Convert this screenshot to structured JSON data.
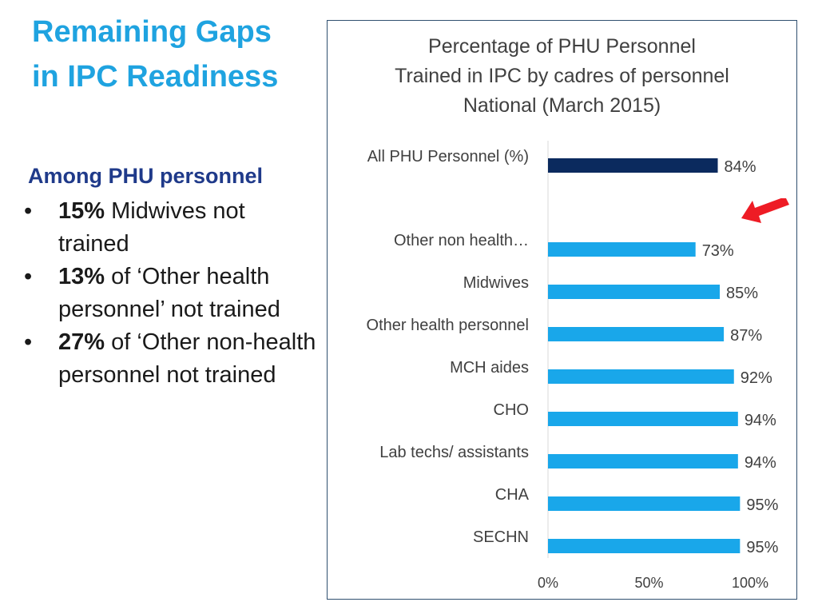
{
  "slide": {
    "title_line1": "Remaining Gaps",
    "title_line2": "in IPC Readiness",
    "bullets_heading": "Among PHU personnel",
    "bullets": [
      {
        "bold": "15%",
        "text": " Midwives not trained"
      },
      {
        "bold": "13%",
        "text": " of ‘Other health personnel’ not trained"
      },
      {
        "bold": "27%",
        "text": " of ‘Other non-health personnel not trained"
      }
    ],
    "bullet_glyph": "•"
  },
  "colors": {
    "title": "#1fa3e0",
    "heading": "#1f3a8a",
    "bar_total": "#0b2a5e",
    "bar": "#19a7ea",
    "arrow": "#ee1c25"
  },
  "chart_data": {
    "type": "bar",
    "orientation": "horizontal",
    "title_lines": [
      "Percentage of PHU Personnel",
      "Trained in IPC by cadres of personnel",
      "National (March 2015)"
    ],
    "categories": [
      "All PHU Personnel (%)",
      "Other non health…",
      "Midwives",
      "Other health personnel",
      "MCH aides",
      "CHO",
      "Lab techs/ assistants",
      "CHA",
      "SECHN"
    ],
    "values": [
      84,
      73,
      85,
      87,
      92,
      94,
      94,
      95,
      95
    ],
    "data_labels": [
      "84%",
      "73%",
      "85%",
      "87%",
      "92%",
      "94%",
      "94%",
      "95%",
      "95%"
    ],
    "highlight_index": 0,
    "gap_after_index": 0,
    "xlim": [
      0,
      100
    ],
    "x_ticks": [
      0,
      50,
      100
    ],
    "x_tick_labels": [
      "0%",
      "50%",
      "100%"
    ],
    "grid": false,
    "annotation": "red-arrow-pointing-at-other-non-health"
  }
}
